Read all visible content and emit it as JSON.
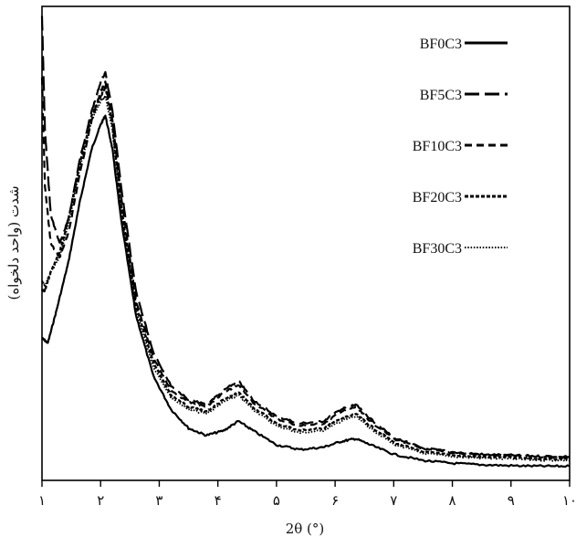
{
  "chart_data": {
    "type": "line",
    "xlabel": "2θ (°)",
    "ylabel": "شدت (واحد دلخواه)",
    "xlim": [
      1,
      10
    ],
    "ylim": [
      0,
      100
    ],
    "y_ticks_shown": false,
    "x_ticks": [
      1,
      2,
      3,
      4,
      5,
      6,
      7,
      8,
      9,
      10
    ],
    "x_tick_labels": [
      "١",
      "٢",
      "٣",
      "۴",
      "۵",
      "۶",
      "٧",
      "٨",
      "٩",
      "١٠"
    ],
    "grid": false,
    "legend_position": "top-right",
    "series": [
      {
        "name": "BF0C3",
        "style": "solid",
        "x": [
          1.0,
          1.1,
          1.25,
          1.45,
          1.65,
          1.85,
          2.0,
          2.08,
          2.2,
          2.35,
          2.6,
          2.9,
          3.2,
          3.5,
          3.8,
          4.1,
          4.35,
          4.6,
          5.0,
          5.4,
          5.8,
          6.1,
          6.35,
          6.6,
          7.0,
          7.5,
          8.0,
          8.5,
          9.0,
          9.5,
          10.0
        ],
        "y": [
          30,
          29,
          36,
          46,
          59,
          70,
          75,
          77,
          70,
          55,
          35,
          22,
          15,
          11,
          9.5,
          10.5,
          12.5,
          10.5,
          7.5,
          6.5,
          7,
          8.2,
          8.8,
          7.5,
          5.5,
          4.2,
          3.6,
          3.3,
          3.1,
          3.0,
          3.0
        ]
      },
      {
        "name": "BF5C3",
        "style": "dashed",
        "x": [
          1.0,
          1.05,
          1.15,
          1.3,
          1.45,
          1.65,
          1.85,
          2.0,
          2.08,
          2.2,
          2.35,
          2.6,
          2.9,
          3.2,
          3.5,
          3.8,
          4.1,
          4.35,
          4.6,
          5.0,
          5.4,
          5.8,
          6.1,
          6.35,
          6.6,
          7.0,
          7.5,
          8.0,
          8.5,
          9.0,
          9.5,
          10.0
        ],
        "y": [
          98,
          74,
          56,
          50,
          55,
          68,
          78,
          84,
          86,
          78,
          62,
          40,
          27,
          20,
          17,
          16,
          19,
          21,
          17,
          13.5,
          12,
          12.5,
          15,
          16,
          13,
          9,
          6.8,
          6.0,
          5.5,
          5.3,
          5.1,
          5.0
        ]
      },
      {
        "name": "BF10C3",
        "style": "short-dashed",
        "x": [
          1.0,
          1.05,
          1.15,
          1.3,
          1.45,
          1.65,
          1.85,
          2.0,
          2.08,
          2.2,
          2.35,
          2.6,
          2.9,
          3.2,
          3.5,
          3.8,
          4.1,
          4.35,
          4.6,
          5.0,
          5.4,
          5.8,
          6.1,
          6.35,
          6.6,
          7.0,
          7.5,
          8.0,
          8.5,
          9.0,
          9.5,
          10.0
        ],
        "y": [
          85,
          62,
          50,
          47,
          52,
          65,
          76,
          82,
          84,
          76,
          60,
          38,
          26,
          19,
          16.5,
          15.5,
          18.5,
          20,
          16.5,
          13,
          11.5,
          12,
          14.5,
          15.5,
          12.5,
          8.8,
          6.6,
          5.8,
          5.4,
          5.2,
          5.0,
          4.9
        ]
      },
      {
        "name": "BF20C3",
        "style": "dense-dashed",
        "x": [
          1.0,
          1.05,
          1.15,
          1.3,
          1.45,
          1.65,
          1.85,
          2.0,
          2.08,
          2.2,
          2.35,
          2.6,
          2.9,
          3.2,
          3.5,
          3.8,
          4.1,
          4.35,
          4.6,
          5.0,
          5.4,
          5.8,
          6.1,
          6.35,
          6.6,
          7.0,
          7.5,
          8.0,
          8.5,
          9.0,
          9.5,
          10.0
        ],
        "y": [
          40,
          40,
          44,
          48,
          55,
          67,
          77,
          81,
          83,
          75,
          58,
          37,
          25,
          18,
          15.5,
          14.5,
          17,
          18.5,
          15.5,
          12,
          10.5,
          11,
          13,
          14,
          11.5,
          8,
          6.0,
          5.3,
          5.0,
          4.8,
          4.6,
          4.5
        ]
      },
      {
        "name": "BF30C3",
        "style": "dotted",
        "x": [
          1.0,
          1.05,
          1.15,
          1.3,
          1.45,
          1.65,
          1.85,
          2.0,
          2.08,
          2.2,
          2.35,
          2.6,
          2.9,
          3.2,
          3.5,
          3.8,
          4.1,
          4.35,
          4.6,
          5.0,
          5.4,
          5.8,
          6.1,
          6.35,
          6.6,
          7.0,
          7.5,
          8.0,
          8.5,
          9.0,
          9.5,
          10.0
        ],
        "y": [
          42,
          41,
          44,
          47,
          54,
          66,
          76,
          80,
          81,
          74,
          57,
          36,
          24,
          17.5,
          15,
          14,
          16.5,
          18,
          15,
          11.5,
          10,
          10.5,
          12.5,
          13.5,
          11,
          7.6,
          5.7,
          5.0,
          4.7,
          4.5,
          4.3,
          4.2
        ]
      }
    ]
  }
}
